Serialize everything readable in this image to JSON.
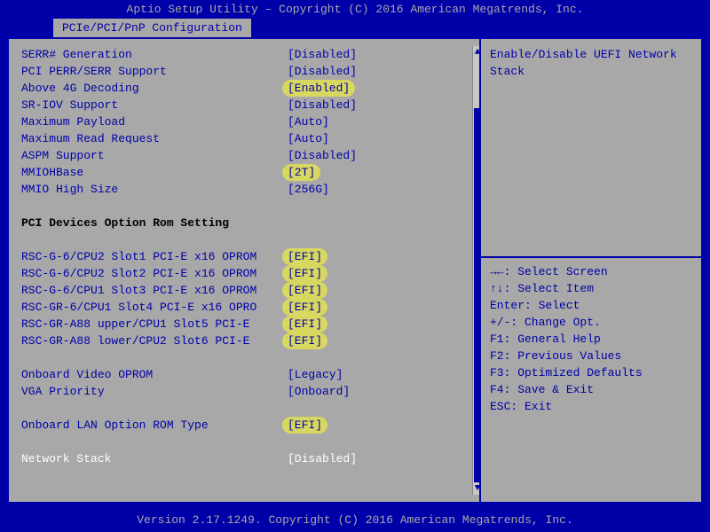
{
  "header": "Aptio Setup Utility – Copyright (C) 2016 American Megatrends, Inc.",
  "tab": "PCIe/PCI/PnP Configuration",
  "footer": "Version 2.17.1249. Copyright (C) 2016 American Megatrends, Inc.",
  "desc": "Enable/Disable UEFI Network Stack",
  "settings": [
    {
      "label": "SERR# Generation",
      "value": "[Disabled]",
      "hl": false
    },
    {
      "label": "PCI PERR/SERR Support",
      "value": "[Disabled]",
      "hl": false
    },
    {
      "label": "Above 4G Decoding",
      "value": "[Enabled]",
      "hl": true
    },
    {
      "label": "SR-IOV Support",
      "value": "[Disabled]",
      "hl": false
    },
    {
      "label": "Maximum Payload",
      "value": "[Auto]",
      "hl": false
    },
    {
      "label": "Maximum Read Request",
      "value": "[Auto]",
      "hl": false
    },
    {
      "label": "ASPM Support",
      "value": "[Disabled]",
      "hl": false
    },
    {
      "label": "MMIOHBase",
      "value": "[2T]",
      "hl": true
    },
    {
      "label": "MMIO High Size",
      "value": "[256G]",
      "hl": false
    }
  ],
  "section_header": "PCI Devices Option Rom Setting",
  "slots": [
    {
      "label": "RSC-G-6/CPU2 Slot1 PCI-E x16 OPROM",
      "value": "[EFI]",
      "hl": true
    },
    {
      "label": "RSC-G-6/CPU2 Slot2 PCI-E x16 OPROM",
      "value": "[EFI]",
      "hl": true
    },
    {
      "label": "RSC-G-6/CPU1 Slot3 PCI-E x16 OPROM",
      "value": "[EFI]",
      "hl": true
    },
    {
      "label": "RSC-GR-6/CPU1 Slot4 PCI-E x16 OPRO",
      "value": "[EFI]",
      "hl": true
    },
    {
      "label": "RSC-GR-A88 upper/CPU1 Slot5 PCI-E",
      "value": "[EFI]",
      "hl": true
    },
    {
      "label": "RSC-GR-A88 lower/CPU2 Slot6 PCI-E",
      "value": "[EFI]",
      "hl": true
    }
  ],
  "extra": [
    {
      "label": "Onboard Video OPROM",
      "value": "[Legacy]",
      "hl": false
    },
    {
      "label": "VGA Priority",
      "value": "[Onboard]",
      "hl": false
    }
  ],
  "lan": {
    "label": "Onboard LAN Option ROM Type",
    "value": "[EFI]",
    "hl": true
  },
  "selected": {
    "label": "Network Stack",
    "value": "[Disabled]"
  },
  "help": [
    "→←: Select Screen",
    "↑↓: Select Item",
    "Enter: Select",
    "+/-: Change Opt.",
    "F1: General Help",
    "F2: Previous Values",
    "F3: Optimized Defaults",
    "F4: Save & Exit",
    "ESC: Exit"
  ],
  "colors": {
    "bg_blue": "#0000a8",
    "panel_gray": "#a8a8a8",
    "highlight": "#d8d860",
    "selected_text": "#ffffff"
  }
}
